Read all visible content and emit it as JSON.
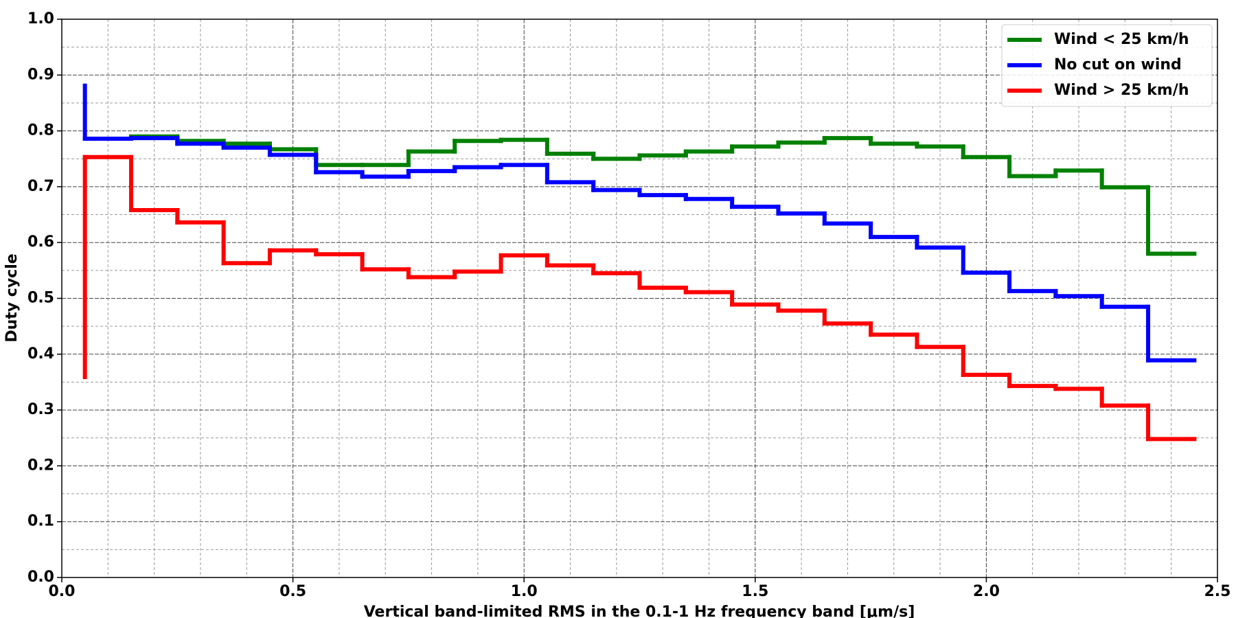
{
  "chart_data": {
    "type": "step",
    "xlabel": "Vertical band-limited RMS in the 0.1-1 Hz frequency band [μm/s]",
    "ylabel": "Duty cycle",
    "x": [
      0.05,
      0.15,
      0.25,
      0.35,
      0.45,
      0.55,
      0.65,
      0.75,
      0.85,
      0.95,
      1.05,
      1.15,
      1.25,
      1.35,
      1.45,
      1.55,
      1.65,
      1.75,
      1.85,
      1.95,
      2.05,
      2.15,
      2.25,
      2.35,
      2.45
    ],
    "series": [
      {
        "name": "Wind < 25 km/h",
        "color": "#008000",
        "values": [
          null,
          null,
          0.79,
          0.782,
          0.777,
          0.767,
          0.739,
          0.739,
          0.763,
          0.782,
          0.784,
          0.759,
          0.75,
          0.756,
          0.763,
          0.772,
          0.779,
          0.787,
          0.777,
          0.772,
          0.753,
          0.719,
          0.729,
          0.699,
          0.58
        ]
      },
      {
        "name": "No cut on wind",
        "color": "#0000ff",
        "values": [
          0.881,
          0.786,
          0.787,
          0.777,
          0.77,
          0.757,
          0.726,
          0.718,
          0.728,
          0.735,
          0.739,
          0.708,
          0.694,
          0.685,
          0.678,
          0.664,
          0.652,
          0.634,
          0.61,
          0.591,
          0.546,
          0.513,
          0.504,
          0.485,
          0.389
        ]
      },
      {
        "name": "Wind > 25 km/h",
        "color": "#ff0000",
        "values": [
          0.359,
          0.753,
          0.658,
          0.636,
          0.563,
          0.586,
          0.579,
          0.552,
          0.538,
          0.548,
          0.577,
          0.559,
          0.545,
          0.519,
          0.511,
          0.489,
          0.478,
          0.455,
          0.435,
          0.413,
          0.363,
          0.343,
          0.338,
          0.308,
          0.248
        ]
      }
    ],
    "xlim": [
      0,
      2.5
    ],
    "ylim": [
      0,
      1
    ],
    "xticks": [
      {
        "value": 0,
        "label": "0.0"
      },
      0.5,
      {
        "value": 1,
        "label": "1.0"
      },
      1.5,
      {
        "value": 2,
        "label": "2.0"
      },
      2.5
    ],
    "yticks": [
      {
        "value": 0,
        "label": "0.0"
      },
      0.1,
      0.2,
      0.3,
      0.4,
      0.5,
      0.6,
      0.7,
      0.8,
      0.9,
      {
        "value": 1,
        "label": "1.0"
      }
    ],
    "xminorticks": [
      0.1,
      0.2,
      0.3,
      0.4,
      0.6,
      0.7,
      0.8,
      0.9,
      1.1,
      1.2,
      1.3,
      1.4,
      1.6,
      1.7,
      1.8,
      1.9,
      2.1,
      2.2,
      2.3,
      2.4
    ],
    "yminorticks": [
      0.05,
      0.15,
      0.25,
      0.35,
      0.45,
      0.55,
      0.65,
      0.75,
      0.85,
      0.95
    ],
    "grid": true,
    "legend": "upper right"
  }
}
